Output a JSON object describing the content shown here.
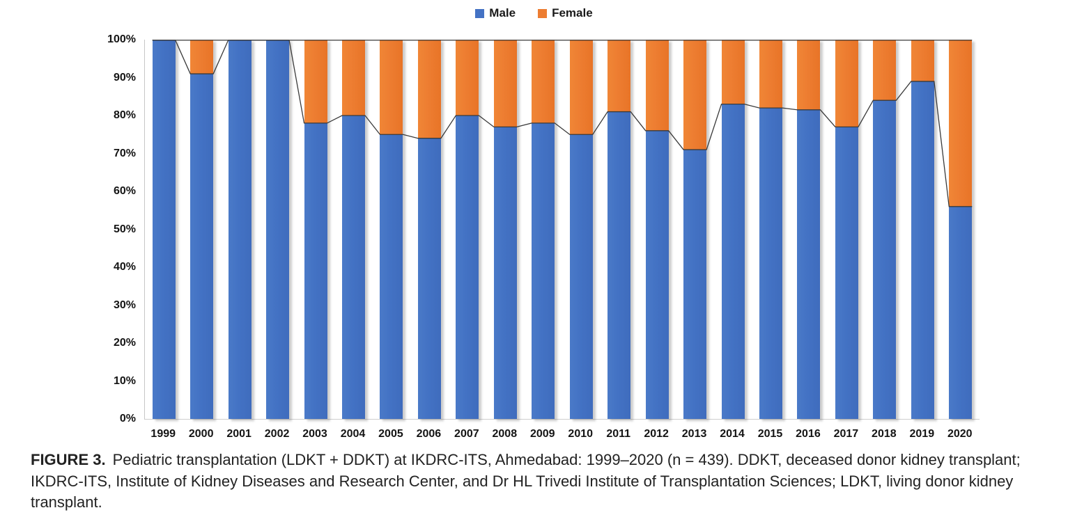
{
  "figure": {
    "caption_label": "FIGURE 3.",
    "caption_text": "Pediatric transplantation (LDKT + DDKT) at IKDRC-ITS, Ahmedabad: 1999–2020 (n = 439). DDKT, deceased donor kidney transplant; IKDRC-ITS, Institute of Kidney Diseases and Research Center, and Dr HL Trivedi Institute of Transplantation Sciences; LDKT, living donor kidney transplant."
  },
  "legend": {
    "items": [
      {
        "label": "Male",
        "color": "#4472C4"
      },
      {
        "label": "Female",
        "color": "#ED7D31"
      }
    ]
  },
  "colors": {
    "male": "#4472C4",
    "female": "#ED7D31",
    "connector_line": "#3a3a3a",
    "axis_line": "#c8c8c8",
    "text": "#141414"
  },
  "chart_data": {
    "type": "bar",
    "stacked": true,
    "stack_total": 100,
    "categories": [
      "1999",
      "2000",
      "2001",
      "2002",
      "2003",
      "2004",
      "2005",
      "2006",
      "2007",
      "2008",
      "2009",
      "2010",
      "2011",
      "2012",
      "2013",
      "2014",
      "2015",
      "2016",
      "2017",
      "2018",
      "2019",
      "2020"
    ],
    "series": [
      {
        "name": "Male",
        "color": "#4472C4",
        "values": [
          100,
          91,
          100,
          100,
          78,
          80,
          75,
          74,
          80,
          77,
          78,
          75,
          81,
          76,
          71,
          83,
          82,
          81.5,
          77,
          84,
          89,
          56
        ]
      },
      {
        "name": "Female",
        "color": "#ED7D31",
        "values": [
          0,
          9,
          0,
          0,
          22,
          20,
          25,
          26,
          20,
          23,
          22,
          25,
          19,
          24,
          29,
          17,
          18,
          18.5,
          23,
          16,
          11,
          44
        ]
      }
    ],
    "xlabel": "",
    "ylabel": "",
    "ylim": [
      0,
      100
    ],
    "y_ticks": [
      "0%",
      "10%",
      "20%",
      "30%",
      "40%",
      "50%",
      "60%",
      "70%",
      "80%",
      "90%",
      "100%"
    ],
    "grid": false,
    "legend_position": "top-center",
    "series_connector_lines": true
  }
}
